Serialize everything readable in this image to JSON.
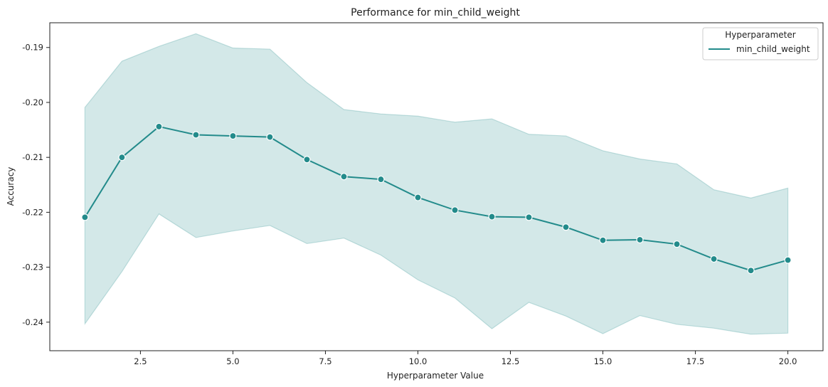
{
  "chart_data": {
    "type": "line",
    "title": "Performance for min_child_weight",
    "xlabel": "Hyperparameter Value",
    "ylabel": "Accuracy",
    "xlim": [
      0.05,
      20.95
    ],
    "ylim": [
      -0.2452,
      -0.1855
    ],
    "x_ticks": [
      2.5,
      5.0,
      7.5,
      10.0,
      12.5,
      15.0,
      17.5,
      20.0
    ],
    "x_tick_labels": [
      "2.5",
      "5.0",
      "7.5",
      "10.0",
      "12.5",
      "15.0",
      "17.5",
      "20.0"
    ],
    "y_ticks": [
      -0.24,
      -0.23,
      -0.22,
      -0.21,
      -0.2,
      -0.19
    ],
    "y_tick_labels": [
      "-0.24",
      "-0.23",
      "-0.22",
      "-0.21",
      "-0.20",
      "-0.19"
    ],
    "legend": {
      "title": "Hyperparameter",
      "position": "top-right"
    },
    "grid": false,
    "color": "#238b8b",
    "band_color": "#238b8b",
    "series": [
      {
        "name": "min_child_weight",
        "x": [
          1,
          2,
          3,
          4,
          5,
          6,
          7,
          8,
          9,
          10,
          11,
          12,
          13,
          14,
          15,
          16,
          17,
          18,
          19,
          20
        ],
        "values": [
          -0.2209,
          -0.21,
          -0.2044,
          -0.2059,
          -0.2061,
          -0.2063,
          -0.2104,
          -0.2135,
          -0.214,
          -0.2173,
          -0.2196,
          -0.2208,
          -0.2209,
          -0.2227,
          -0.2251,
          -0.225,
          -0.2258,
          -0.2285,
          -0.2306,
          -0.2287
        ],
        "upper": [
          -0.2009,
          -0.1925,
          -0.1898,
          -0.1875,
          -0.1901,
          -0.1903,
          -0.1964,
          -0.2013,
          -0.2021,
          -0.2025,
          -0.2036,
          -0.203,
          -0.2058,
          -0.2061,
          -0.2088,
          -0.2103,
          -0.2112,
          -0.2159,
          -0.2174,
          -0.2156
        ],
        "lower": [
          -0.2403,
          -0.2308,
          -0.2203,
          -0.2246,
          -0.2234,
          -0.2224,
          -0.2257,
          -0.2247,
          -0.2278,
          -0.2323,
          -0.2356,
          -0.2412,
          -0.2364,
          -0.2389,
          -0.2421,
          -0.2388,
          -0.2404,
          -0.2411,
          -0.2422,
          -0.242
        ]
      }
    ]
  }
}
